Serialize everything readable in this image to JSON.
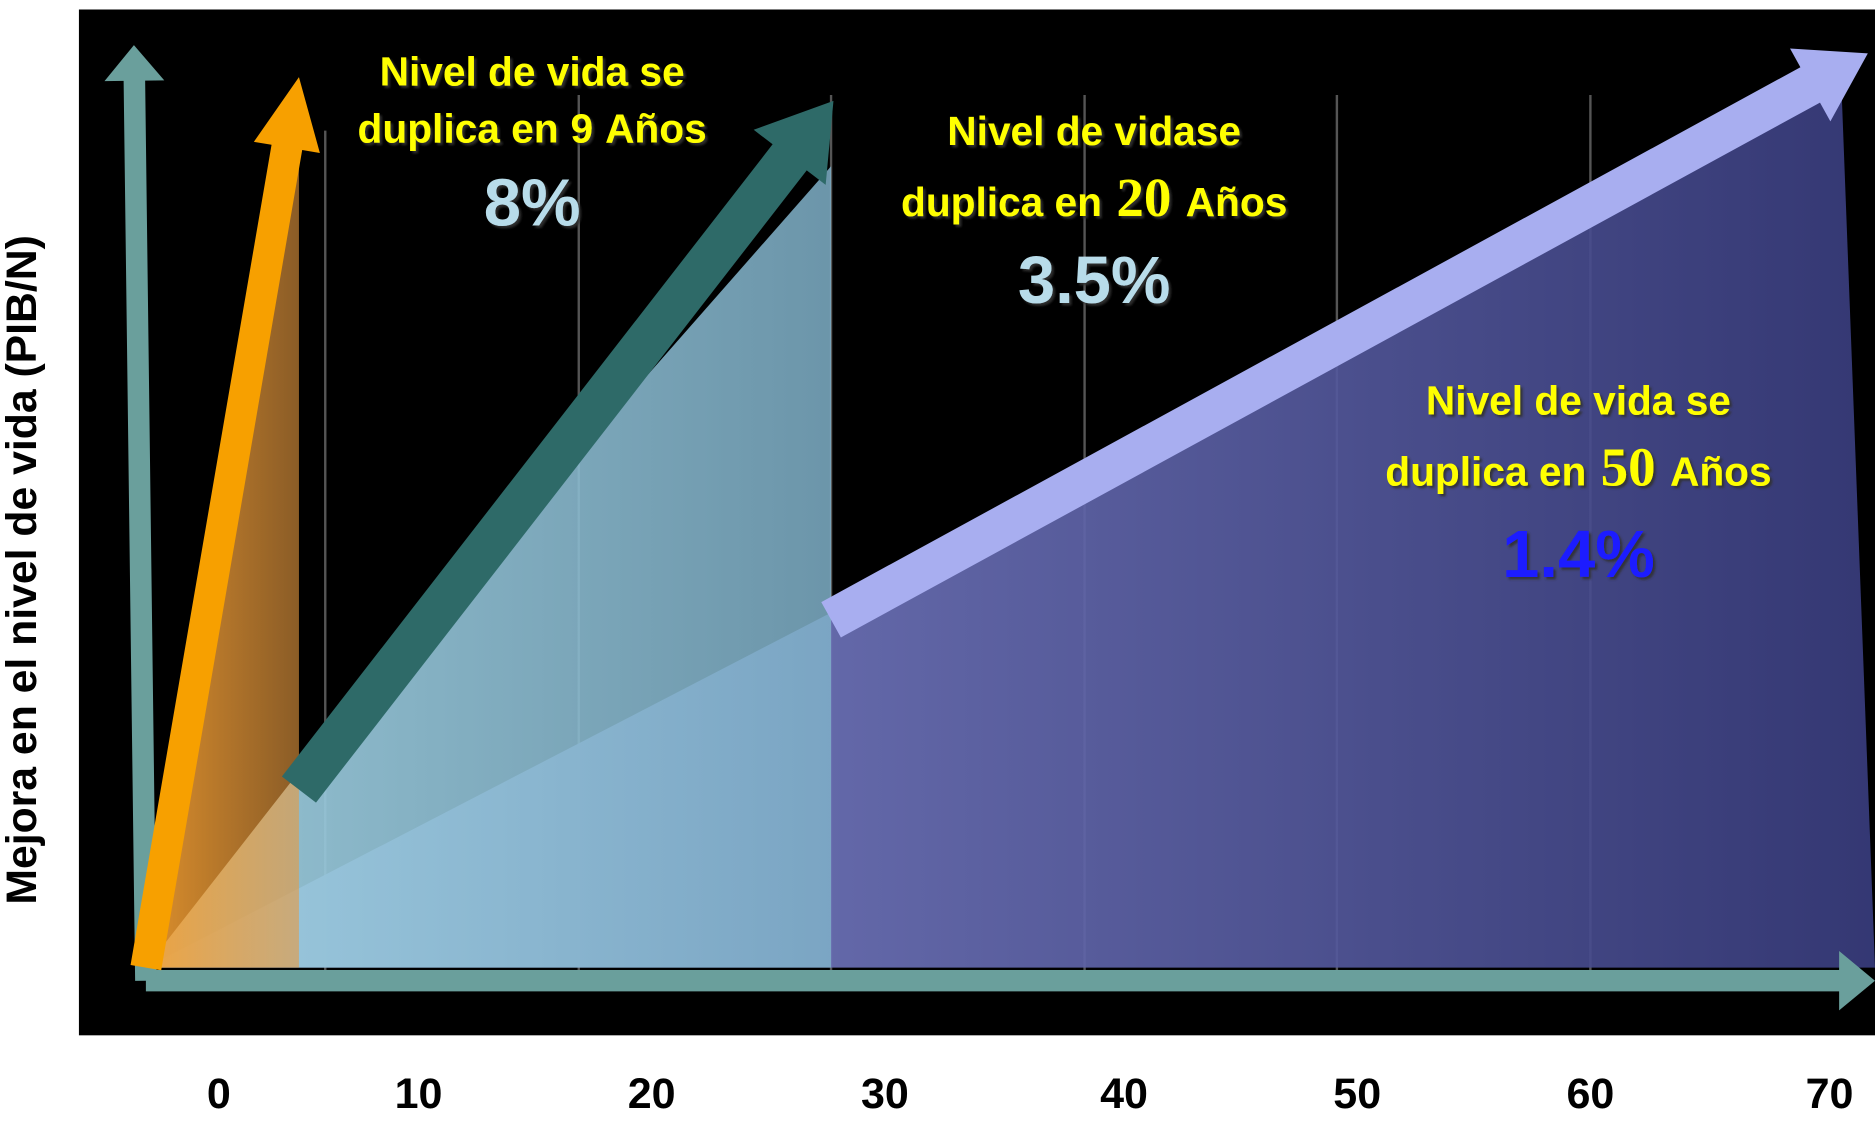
{
  "y_axis_label": "Mejora en el nivel de vida (PIB/N)",
  "x_labels": [
    "0",
    "10",
    "20",
    "30",
    "40",
    "50",
    "60",
    "70"
  ],
  "annotations": [
    {
      "line1": "Nivel de vida se",
      "line2_pre": "duplica en",
      "years": "9",
      "line2_post": "Años",
      "rate": "8%"
    },
    {
      "line1": "Nivel de vidase",
      "line2_pre": "duplica en",
      "years": "20",
      "line2_post": "Años",
      "rate": "3.5%"
    },
    {
      "line1": "Nivel de vida se",
      "line2_pre": "duplica en",
      "years": "50",
      "line2_post": "Años",
      "rate": "1.4%"
    }
  ]
}
